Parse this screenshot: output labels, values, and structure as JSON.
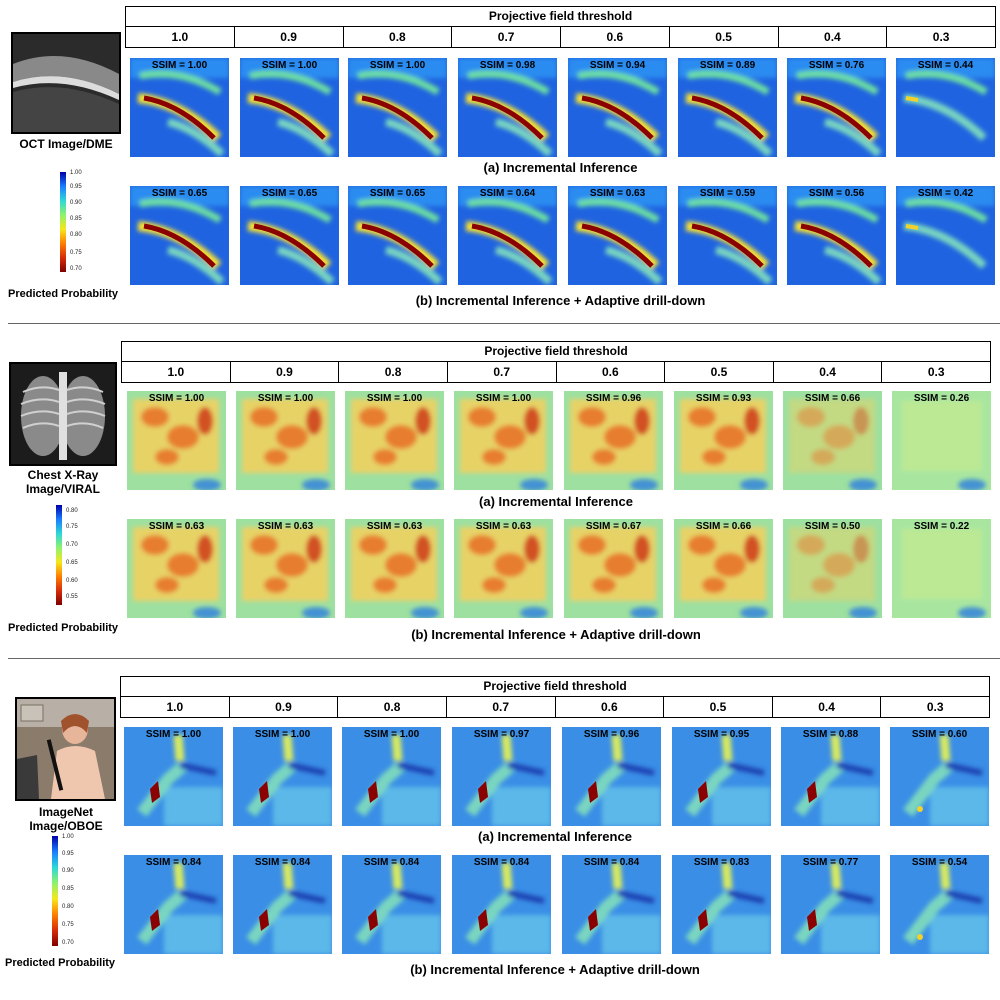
{
  "panels": [
    {
      "image_label": "OCT Image/DME",
      "threshold_title": "Projective field threshold",
      "thresholds": [
        "1.0",
        "0.9",
        "0.8",
        "0.7",
        "0.6",
        "0.5",
        "0.4",
        "0.3"
      ],
      "row_a_ssim": [
        "SSIM = 1.00",
        "SSIM = 1.00",
        "SSIM = 1.00",
        "SSIM = 0.98",
        "SSIM = 0.94",
        "SSIM = 0.89",
        "SSIM = 0.76",
        "SSIM = 0.44"
      ],
      "row_b_ssim": [
        "SSIM = 0.65",
        "SSIM = 0.65",
        "SSIM = 0.65",
        "SSIM = 0.64",
        "SSIM = 0.63",
        "SSIM = 0.59",
        "SSIM = 0.56",
        "SSIM = 0.42"
      ],
      "caption_a": "(a) Incremental Inference",
      "caption_b": "(b) Incremental Inference + Adaptive drill-down",
      "colorbar_ticks": [
        "1.00",
        "0.95",
        "0.90",
        "0.85",
        "0.80",
        "0.75",
        "0.70"
      ],
      "colorbar_label": "Predicted Probability"
    },
    {
      "image_label": "Chest X-Ray Image/VIRAL",
      "threshold_title": "Projective field threshold",
      "thresholds": [
        "1.0",
        "0.9",
        "0.8",
        "0.7",
        "0.6",
        "0.5",
        "0.4",
        "0.3"
      ],
      "row_a_ssim": [
        "SSIM = 1.00",
        "SSIM = 1.00",
        "SSIM = 1.00",
        "SSIM = 1.00",
        "SSIM = 0.96",
        "SSIM = 0.93",
        "SSIM = 0.66",
        "SSIM = 0.26"
      ],
      "row_b_ssim": [
        "SSIM = 0.63",
        "SSIM = 0.63",
        "SSIM = 0.63",
        "SSIM = 0.63",
        "SSIM = 0.67",
        "SSIM = 0.66",
        "SSIM = 0.50",
        "SSIM = 0.22"
      ],
      "caption_a": "(a) Incremental Inference",
      "caption_b": "(b) Incremental Inference + Adaptive drill-down",
      "colorbar_ticks": [
        "0.80",
        "0.75",
        "0.70",
        "0.65",
        "0.60",
        "0.55"
      ],
      "colorbar_label": "Predicted Probability"
    },
    {
      "image_label": "ImageNet Image/OBOE",
      "threshold_title": "Projective field threshold",
      "thresholds": [
        "1.0",
        "0.9",
        "0.8",
        "0.7",
        "0.6",
        "0.5",
        "0.4",
        "0.3"
      ],
      "row_a_ssim": [
        "SSIM = 1.00",
        "SSIM = 1.00",
        "SSIM = 1.00",
        "SSIM = 0.97",
        "SSIM = 0.96",
        "SSIM = 0.95",
        "SSIM = 0.88",
        "SSIM = 0.60"
      ],
      "row_b_ssim": [
        "SSIM = 0.84",
        "SSIM = 0.84",
        "SSIM = 0.84",
        "SSIM = 0.84",
        "SSIM = 0.84",
        "SSIM = 0.83",
        "SSIM = 0.77",
        "SSIM = 0.54"
      ],
      "caption_a": "(a) Incremental Inference",
      "caption_b": "(b) Incremental Inference + Adaptive drill-down",
      "colorbar_ticks": [
        "1.00",
        "0.95",
        "0.90",
        "0.85",
        "0.80",
        "0.75",
        "0.70"
      ],
      "colorbar_label": "Predicted Probability"
    }
  ]
}
